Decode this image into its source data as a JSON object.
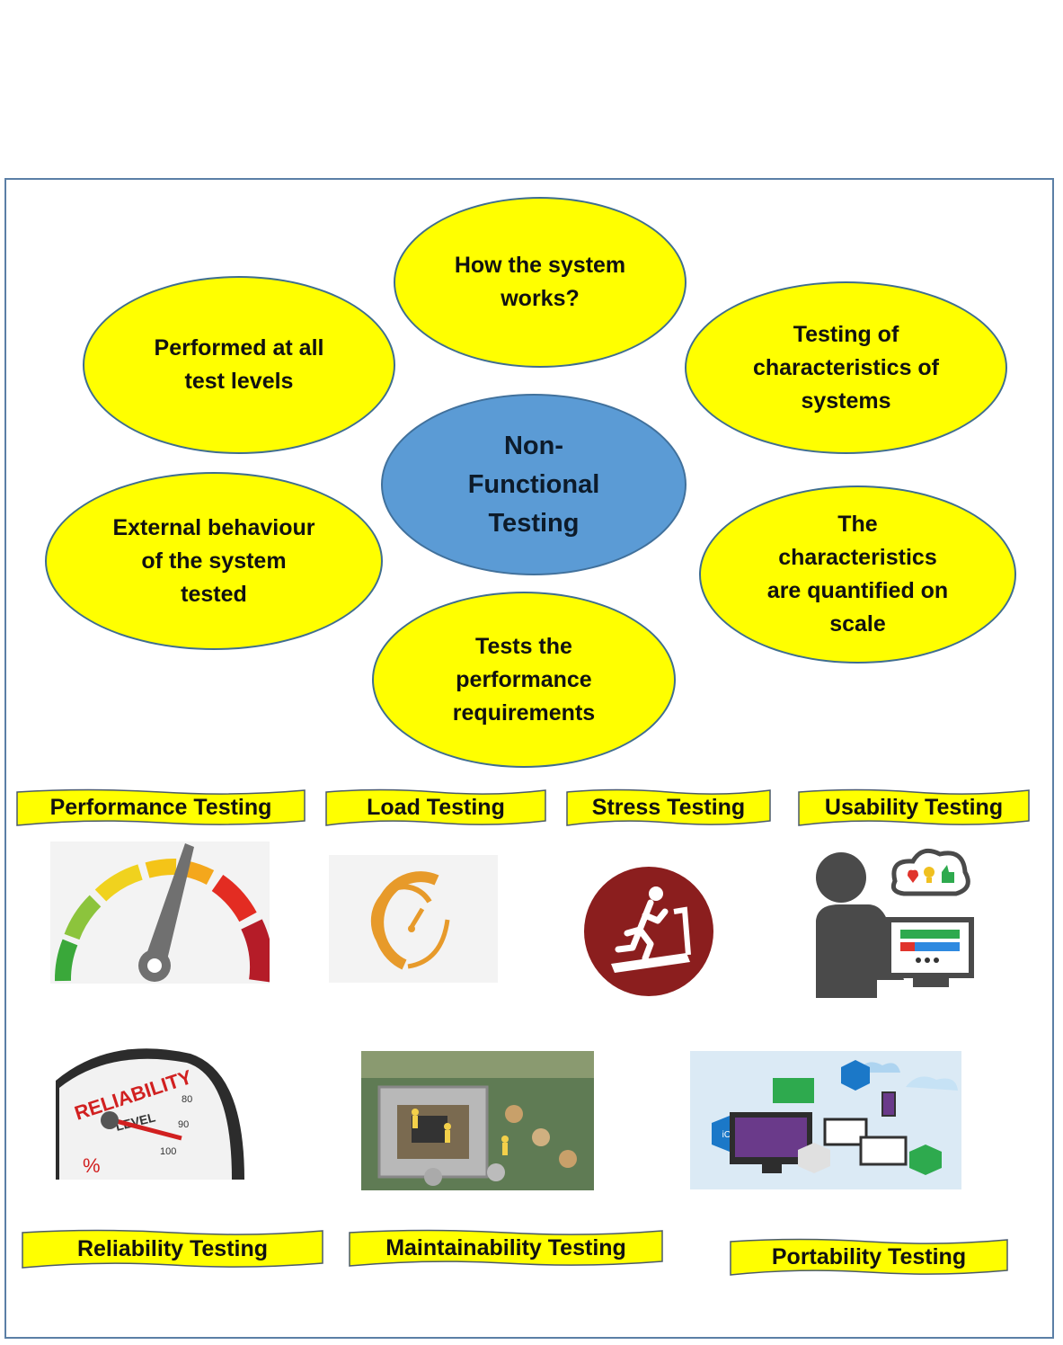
{
  "diagram": {
    "center": {
      "lines": [
        "Non-",
        "Functional",
        "Testing"
      ]
    },
    "bubbles": [
      {
        "id": "how",
        "lines": [
          "How the system",
          "works?"
        ]
      },
      {
        "id": "performed",
        "lines": [
          "Performed at all",
          "test levels"
        ]
      },
      {
        "id": "characteristics",
        "lines": [
          "Testing of",
          "characteristics of",
          "systems"
        ]
      },
      {
        "id": "external",
        "lines": [
          "External behaviour",
          "of the system",
          "tested"
        ]
      },
      {
        "id": "quantified",
        "lines": [
          "The",
          "characteristics",
          "are quantified on",
          "scale"
        ]
      },
      {
        "id": "performance",
        "lines": [
          "Tests the",
          "performance",
          "requirements"
        ]
      }
    ],
    "types": [
      {
        "label": "Performance Testing",
        "icon": "speedometer-gauge-icon"
      },
      {
        "label": "Load Testing",
        "icon": "load-gauge-icon"
      },
      {
        "label": "Stress Testing",
        "icon": "treadmill-runner-icon"
      },
      {
        "label": "Usability Testing",
        "icon": "user-computer-feedback-icon"
      },
      {
        "label": "Reliability Testing",
        "icon": "reliability-level-gauge-icon"
      },
      {
        "label": "Maintainability Testing",
        "icon": "circuit-board-workers-icon"
      },
      {
        "label": "Portability Testing",
        "icon": "multi-platform-devices-icon"
      }
    ],
    "image_text": {
      "reliability_gauge": [
        "RELIABILITY",
        "LEVEL",
        "%",
        "80",
        "90",
        "100"
      ],
      "portability_badge": "iOS"
    },
    "colors": {
      "bubble": "#ffff00",
      "center": "#5b9bd5",
      "banner": "#ffff00",
      "frame": "#5b7fa6"
    }
  }
}
